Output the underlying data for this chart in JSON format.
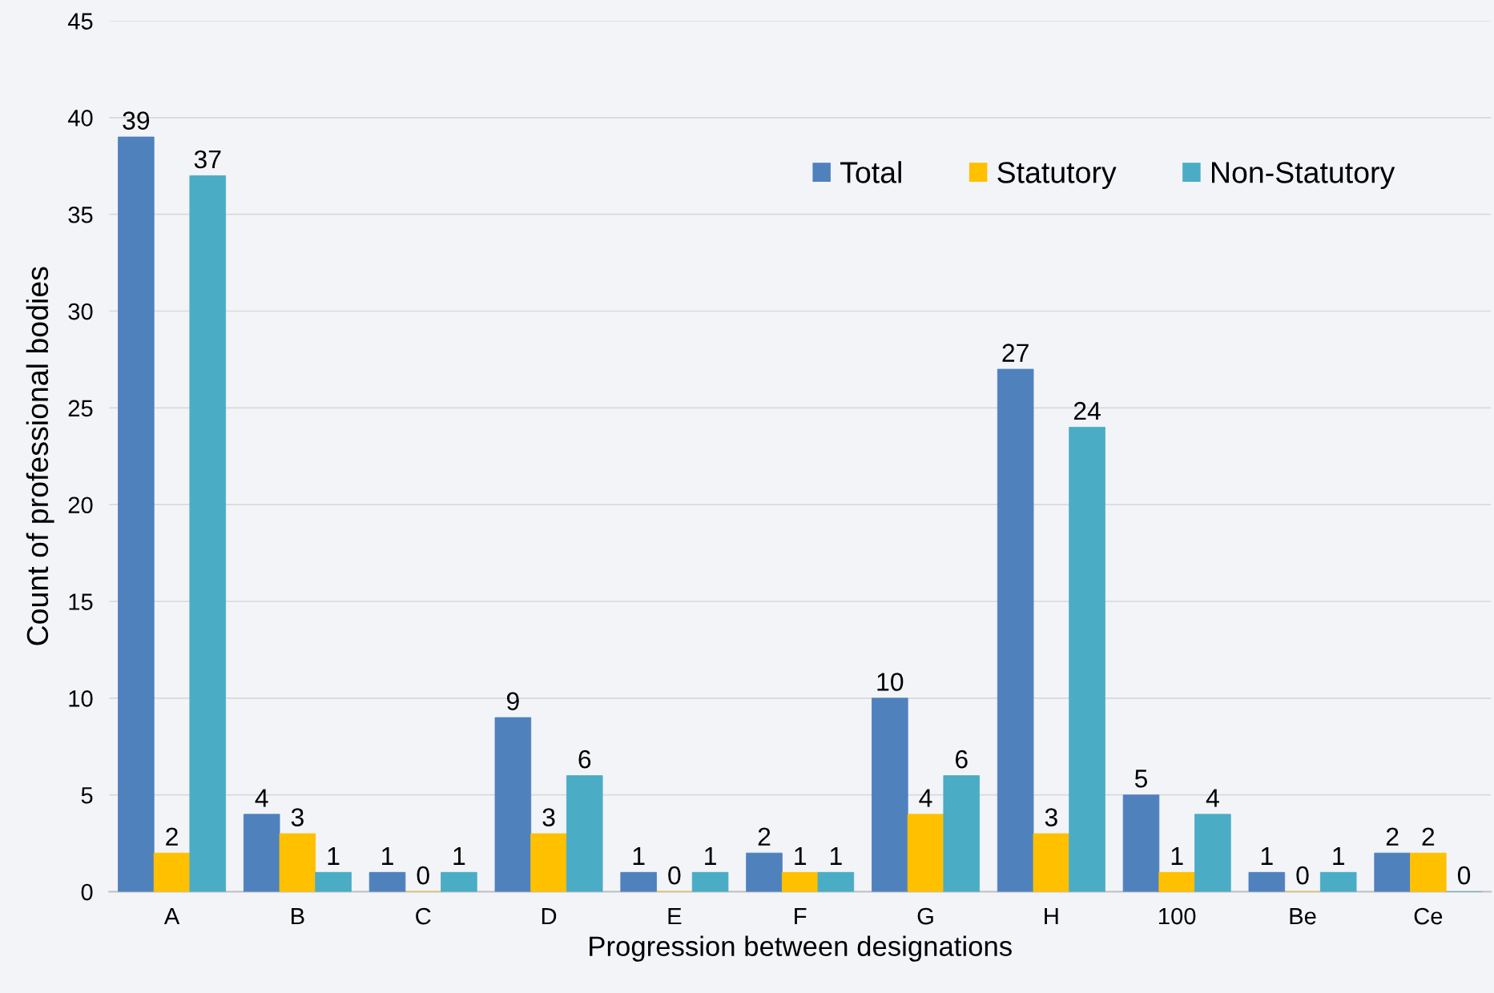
{
  "chart_data": {
    "type": "bar",
    "xlabel": "Progression between designations",
    "ylabel": "Count of professional bodies",
    "categories": [
      "A",
      "B",
      "C",
      "D",
      "E",
      "F",
      "G",
      "H",
      "100",
      "Be",
      "Ce"
    ],
    "series": [
      {
        "name": "Total",
        "color": "#4f81bd",
        "values": [
          39,
          4,
          1,
          9,
          1,
          2,
          10,
          27,
          5,
          1,
          2
        ]
      },
      {
        "name": "Statutory",
        "color": "#ffc000",
        "values": [
          2,
          3,
          0,
          3,
          0,
          1,
          4,
          3,
          1,
          0,
          2
        ]
      },
      {
        "name": "Non-Statutory",
        "color": "#4bacc6",
        "values": [
          37,
          1,
          1,
          6,
          1,
          1,
          6,
          24,
          4,
          1,
          0
        ]
      }
    ],
    "ylim": [
      0,
      45
    ],
    "yticks": [
      0,
      5,
      10,
      15,
      20,
      25,
      30,
      35,
      40,
      45
    ],
    "grid": "y",
    "legend": "top right",
    "data_labels": true
  }
}
